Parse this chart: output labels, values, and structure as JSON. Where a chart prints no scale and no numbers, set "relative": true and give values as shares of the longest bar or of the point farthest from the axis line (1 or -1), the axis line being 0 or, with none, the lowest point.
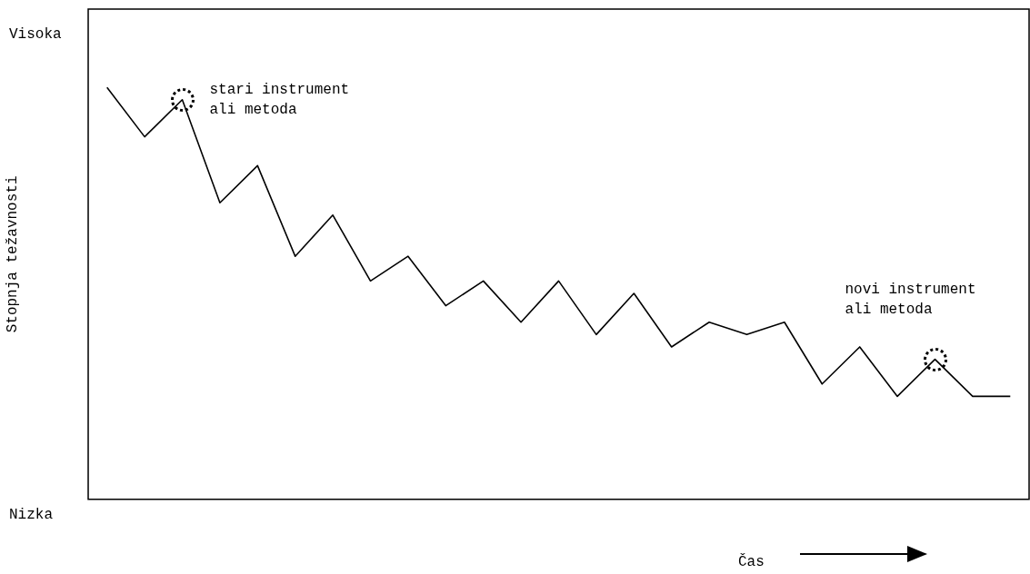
{
  "chart_data": {
    "type": "line",
    "ylabel": "Stopnja težavnosti",
    "xlabel": "Čas",
    "relative": true,
    "categories": [
      null,
      null,
      null,
      null,
      null,
      null,
      null,
      null,
      null,
      null,
      null,
      null,
      null,
      null,
      null,
      null,
      null,
      null,
      null,
      null,
      null,
      null,
      null,
      null,
      null
    ],
    "series": [
      {
        "color": "#000000",
        "values": [
          1,
          0.88,
          0.97,
          0.72,
          0.81,
          0.59,
          0.69,
          0.53,
          0.59,
          0.47,
          0.53,
          0.43,
          0.53,
          0.4,
          0.5,
          0.37,
          0.43,
          0.4,
          0.43,
          0.28,
          0.37,
          0.25,
          0.34,
          0.25,
          0.25
        ]
      }
    ],
    "grid": false,
    "legend": false,
    "marker": "none",
    "line_style": "solid",
    "annotations": [
      "Visoka",
      "Nizka",
      "stari instrument\nali metoda",
      "novi instrument\nali metoda"
    ]
  }
}
